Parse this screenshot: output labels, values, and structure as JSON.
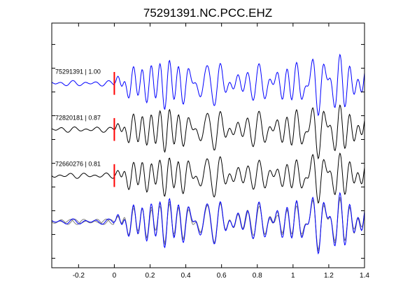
{
  "chart_data": {
    "type": "line",
    "title": "75291391.NC.PCC.EHZ",
    "xlabel": "",
    "ylabel": "",
    "xlim": [
      -0.35,
      1.4
    ],
    "x_ticks": [
      -0.2,
      0,
      0.2,
      0.4,
      0.6,
      0.8,
      1,
      1.2,
      1.4
    ],
    "x_tick_labels": [
      "-0.2",
      "0",
      "0.2",
      "0.4",
      "0.6",
      "0.8",
      "1",
      "1.2",
      "1.4"
    ],
    "grid": false,
    "pick_time": 0,
    "colors": {
      "reference": "#0000ff",
      "match": "#000000",
      "overlay_match": "#808080",
      "pick": "#ff0000"
    },
    "traces": [
      {
        "label": "75291391 | 1.00",
        "event_id": "75291391",
        "correlation": 1.0,
        "offset": 0.68,
        "seed": 11
      },
      {
        "label": "72820181 | 0.87",
        "event_id": "72820181",
        "correlation": 0.87,
        "offset": -0.29,
        "seed": 23
      },
      {
        "label": "72660276 | 0.81",
        "event_id": "72660276",
        "correlation": 0.81,
        "offset": -1.26,
        "seed": 37
      }
    ],
    "overlay_offset": -2.23
  }
}
